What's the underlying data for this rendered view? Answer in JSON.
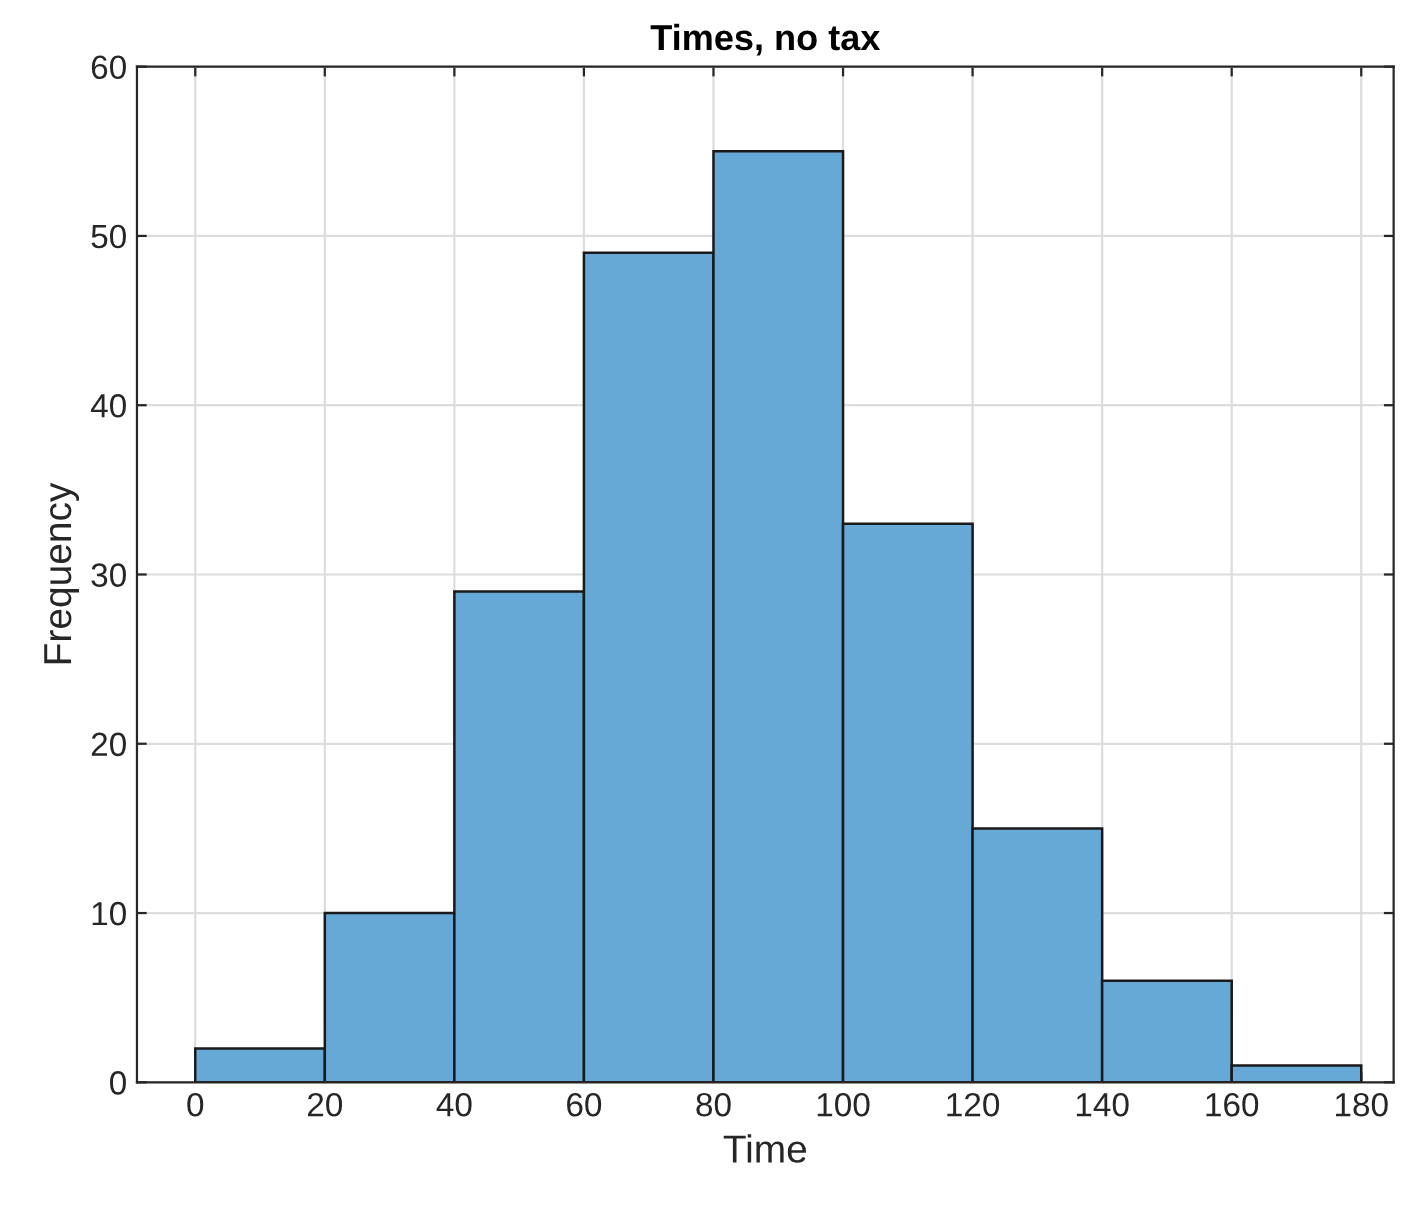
{
  "chart_data": {
    "type": "histogram",
    "title": "Times, no tax",
    "xlabel": "Time",
    "ylabel": "Frequency",
    "bins": [
      0,
      20,
      40,
      60,
      80,
      100,
      120,
      140,
      160,
      180
    ],
    "values": [
      2,
      10,
      29,
      49,
      55,
      33,
      15,
      6,
      1
    ],
    "color": "#66a9d7",
    "xlim": [
      -9,
      185
    ],
    "xticks": [
      0,
      20,
      40,
      60,
      80,
      100,
      120,
      140,
      160,
      180
    ],
    "ylim": [
      0,
      60
    ],
    "yticks": [
      0,
      10,
      20,
      30,
      40,
      50,
      60
    ],
    "grid": true
  }
}
